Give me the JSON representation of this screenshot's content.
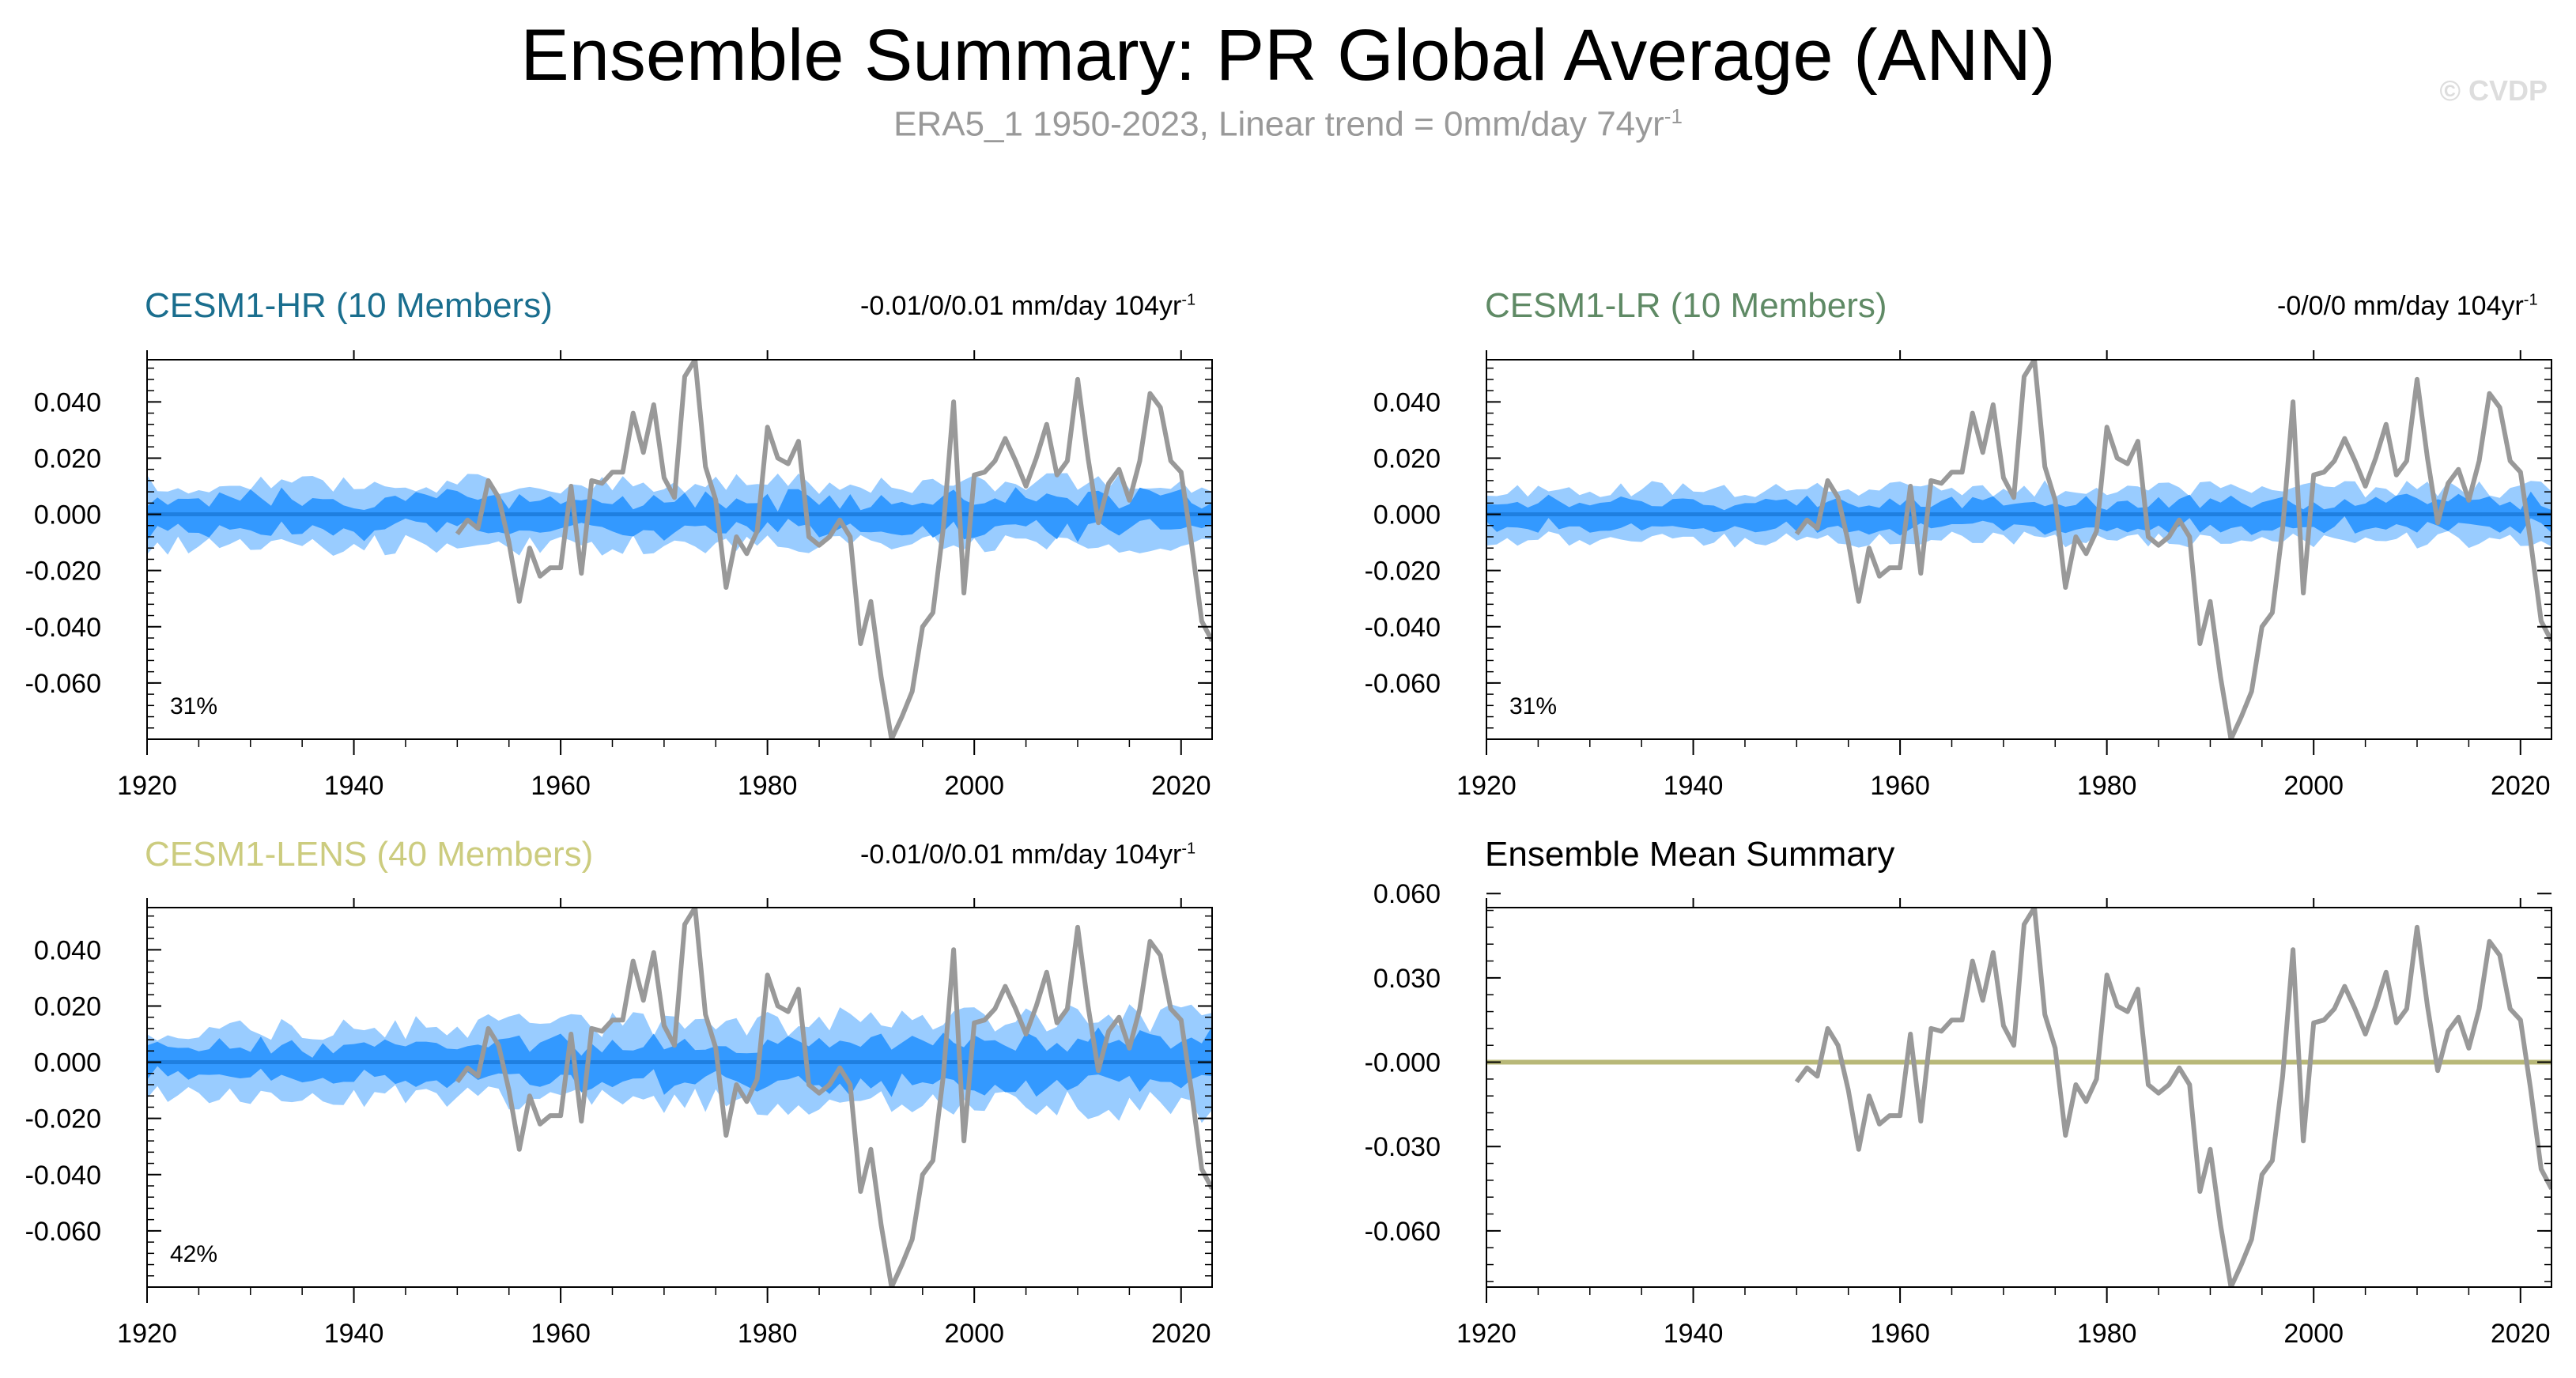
{
  "header": {
    "title": "Ensemble Summary: PR Global Average (ANN)",
    "subtitle_text": "ERA5_1 1950-2023, Linear trend = 0mm/day 74yr",
    "subtitle_sup": "-1",
    "watermark": "© CVDP"
  },
  "colors": {
    "obs": "#999999",
    "spread_outer": "#99ccff",
    "spread_inner": "#3399ff",
    "ens_mean": "#1f7fe0",
    "hr_title": "#1a6e8e",
    "lr_title": "#5f8a65",
    "lens_title": "#cccc7f",
    "summary_mean": "#b8b878"
  },
  "panels": {
    "hr": {
      "title": "CESM1-HR (10 Members)",
      "trend": "-0.01/0/0.01 mm/day 104yr",
      "trend_sup": "-1",
      "pct": "31%"
    },
    "lr": {
      "title": "CESM1-LR (10 Members)",
      "trend": "-0/0/0 mm/day 104yr",
      "trend_sup": "-1",
      "pct": "31%"
    },
    "lens": {
      "title": "CESM1-LENS (40 Members)",
      "trend": "-0.01/0/0.01 mm/day 104yr",
      "trend_sup": "-1",
      "pct": "42%"
    },
    "summary": {
      "title": "Ensemble Mean Summary"
    }
  },
  "chart_data": [
    {
      "id": "hr",
      "type": "line",
      "title": "CESM1-HR (10 Members)",
      "xlim": [
        1920,
        2023
      ],
      "ylim": [
        -0.08,
        0.055
      ],
      "xticks": [
        1920,
        1940,
        1960,
        1980,
        2000,
        2020
      ],
      "xtick_labels": [
        "1920",
        "1940",
        "1960",
        "1980",
        "2000",
        "2020"
      ],
      "yticks": [
        0.04,
        0.02,
        0.0,
        -0.02,
        -0.04,
        -0.06
      ],
      "ytick_labels": [
        "0.040",
        "0.020",
        "0.000",
        "-0.020",
        "-0.040",
        "-0.060"
      ],
      "spread_outer_amp": 0.011,
      "spread_inner_amp": 0.006,
      "series": [
        {
          "name": "Ensemble mean",
          "values": [
            0
          ]
        },
        {
          "name": "ERA5_1 observations"
        }
      ]
    },
    {
      "id": "lr",
      "type": "line",
      "title": "CESM1-LR (10 Members)",
      "xlim": [
        1920,
        2023
      ],
      "ylim": [
        -0.08,
        0.055
      ],
      "xticks": [
        1920,
        1940,
        1960,
        1980,
        2000,
        2020
      ],
      "xtick_labels": [
        "1920",
        "1940",
        "1960",
        "1980",
        "2000",
        "2020"
      ],
      "yticks": [
        0.04,
        0.02,
        0.0,
        -0.02,
        -0.04,
        -0.06
      ],
      "ytick_labels": [
        "0.040",
        "0.020",
        "0.000",
        "-0.020",
        "-0.040",
        "-0.060"
      ],
      "spread_outer_amp": 0.009,
      "spread_inner_amp": 0.005,
      "series": [
        {
          "name": "Ensemble mean",
          "values": [
            0
          ]
        },
        {
          "name": "ERA5_1 observations"
        }
      ]
    },
    {
      "id": "lens",
      "type": "line",
      "title": "CESM1-LENS (40 Members)",
      "xlim": [
        1920,
        2023
      ],
      "ylim": [
        -0.08,
        0.055
      ],
      "xticks": [
        1920,
        1940,
        1960,
        1980,
        2000,
        2020
      ],
      "xtick_labels": [
        "1920",
        "1940",
        "1960",
        "1980",
        "2000",
        "2020"
      ],
      "yticks": [
        0.04,
        0.02,
        0.0,
        -0.02,
        -0.04,
        -0.06
      ],
      "ytick_labels": [
        "0.040",
        "0.020",
        "0.000",
        "-0.020",
        "-0.040",
        "-0.060"
      ],
      "spread_outer_amp": 0.011,
      "spread_inner_amp": 0.006,
      "series": [
        {
          "name": "Ensemble mean",
          "values": [
            0
          ]
        },
        {
          "name": "ERA5_1 observations"
        }
      ]
    },
    {
      "id": "summary",
      "type": "line",
      "title": "Ensemble Mean Summary",
      "xlim": [
        1920,
        2023
      ],
      "ylim": [
        -0.08,
        0.055
      ],
      "xticks": [
        1920,
        1940,
        1960,
        1980,
        2000,
        2020
      ],
      "xtick_labels": [
        "1920",
        "1940",
        "1960",
        "1980",
        "2000",
        "2020"
      ],
      "yticks": [
        0.06,
        0.03,
        0.0,
        -0.03,
        -0.06
      ],
      "ytick_labels": [
        "0.060",
        "0.030",
        "-0.000",
        "-0.030",
        "-0.060"
      ],
      "series": [
        {
          "name": "Ensemble mean",
          "values": [
            0
          ]
        },
        {
          "name": "ERA5_1 observations"
        }
      ]
    }
  ],
  "obs_years": [
    1950,
    1951,
    1952,
    1953,
    1954,
    1955,
    1956,
    1957,
    1958,
    1959,
    1960,
    1961,
    1962,
    1963,
    1964,
    1965,
    1966,
    1967,
    1968,
    1969,
    1970,
    1971,
    1972,
    1973,
    1974,
    1975,
    1976,
    1977,
    1978,
    1979,
    1980,
    1981,
    1982,
    1983,
    1984,
    1985,
    1986,
    1987,
    1988,
    1989,
    1990,
    1991,
    1992,
    1993,
    1994,
    1995,
    1996,
    1997,
    1998,
    1999,
    2000,
    2001,
    2002,
    2003,
    2004,
    2005,
    2006,
    2007,
    2008,
    2009,
    2010,
    2011,
    2012,
    2013,
    2014,
    2015,
    2016,
    2017,
    2018,
    2019,
    2020,
    2021,
    2022,
    2023
  ],
  "obs_values": [
    -0.007,
    -0.002,
    -0.005,
    0.012,
    0.006,
    -0.01,
    -0.031,
    -0.012,
    -0.022,
    -0.019,
    -0.019,
    0.01,
    -0.021,
    0.012,
    0.011,
    0.015,
    0.015,
    0.036,
    0.022,
    0.039,
    0.013,
    0.006,
    0.049,
    0.055,
    0.017,
    0.005,
    -0.026,
    -0.008,
    -0.014,
    -0.006,
    0.031,
    0.02,
    0.018,
    0.026,
    -0.008,
    -0.011,
    -0.008,
    -0.002,
    -0.008,
    -0.046,
    -0.031,
    -0.058,
    -0.08,
    -0.072,
    -0.063,
    -0.04,
    -0.035,
    -0.005,
    0.04,
    -0.028,
    0.014,
    0.015,
    0.019,
    0.027,
    0.019,
    0.01,
    0.02,
    0.032,
    0.014,
    0.019,
    0.048,
    0.02,
    -0.003,
    0.011,
    0.016,
    0.005,
    0.019,
    0.043,
    0.038,
    0.019,
    0.015,
    -0.01,
    -0.038,
    -0.045
  ]
}
